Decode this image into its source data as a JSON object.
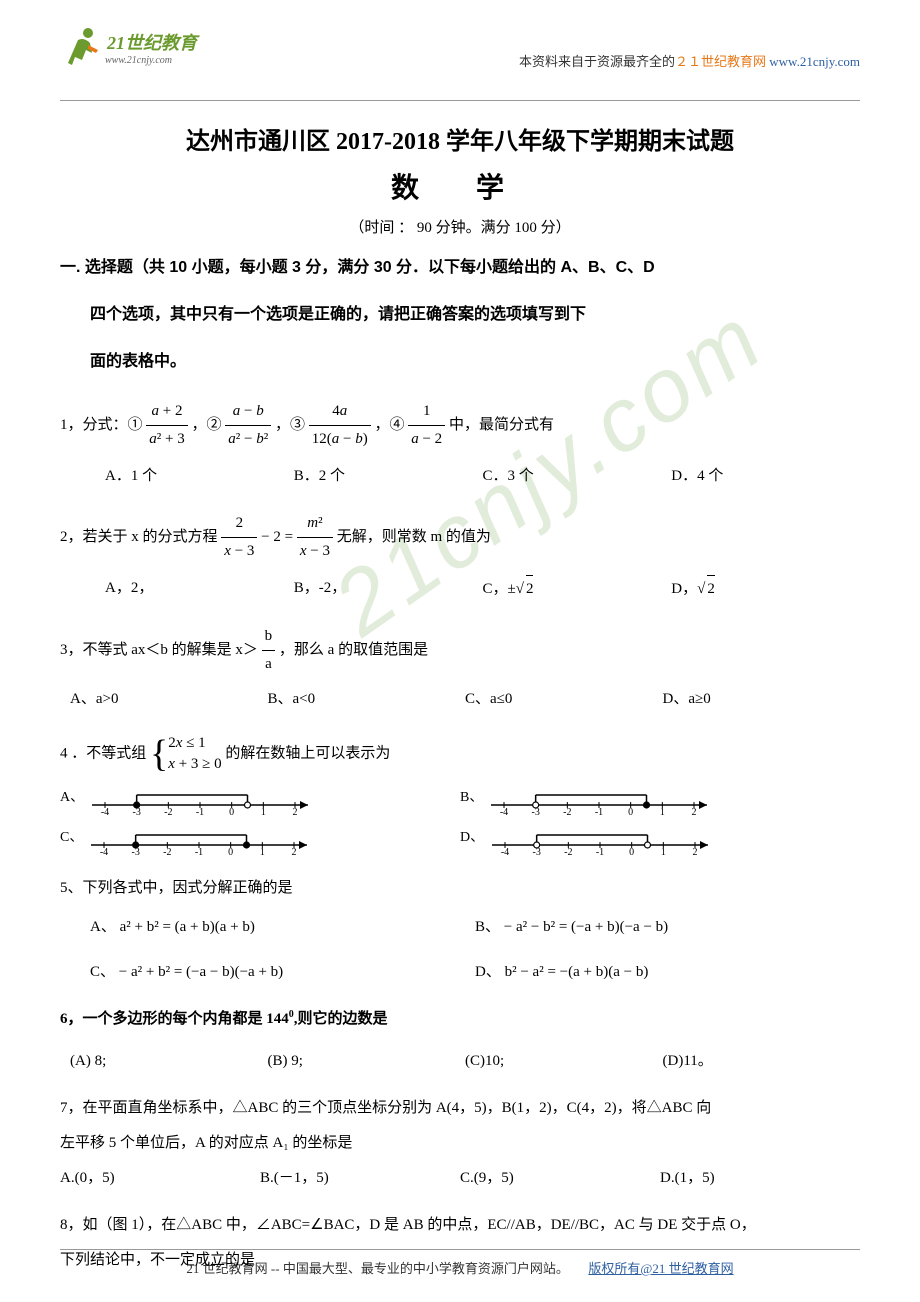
{
  "header": {
    "logo_text1": "21",
    "logo_text2": "世纪教育",
    "logo_url": "www.21cnjy.com",
    "right_prefix": "本资料来自于资源最齐全的",
    "right_orange": "２１世纪教育网",
    "right_link": "www.21cnjy.com"
  },
  "title": "达州市通川区 2017-2018 学年八年级下学期期末试题",
  "subject": "数 学",
  "time_info": "（时间 ： 90  分钟。满分 100 分）",
  "section1_line1": "一.  选择题（共 10 小题，每小题 3 分，满分 30 分．以下每小题给出的 A、B、C、D",
  "section1_line2": "四个选项，其中只有一个选项是正确的，请把正确答案的选项填写到下",
  "section1_line3": "面的表格中。",
  "q1": {
    "prefix": "1，分式：①",
    "mid1": "，②",
    "mid2": "，③",
    "mid3": "，④",
    "suffix": "中，最简分式有",
    "optA": "A．1 个",
    "optB": "B．2 个",
    "optC": "C．3 个",
    "optD": "D．4 个"
  },
  "q2": {
    "prefix": "2，若关于 x 的分式方程",
    "mid": " 无解，则常数 m 的值为",
    "optA": "A，2，",
    "optB": "B，-2，",
    "optC_prefix": "C，±",
    "optD_prefix": "D，",
    "sqrt_val": "2"
  },
  "q3": {
    "prefix": "3，不等式 ax＜b 的解集是 x＞",
    "suffix": "，那么 a 的取值范围是",
    "optA": "A、a>0",
    "optB": "B、a<0",
    "optC": "C、a≤0",
    "optD": "D、a≥0"
  },
  "q4": {
    "prefix": "4 ．不等式组",
    "line1": "2x ≤ 1",
    "line2": "x + 3 ≥ 0",
    "suffix": " 的解在数轴上可以表示为"
  },
  "number_lines": {
    "labels": [
      "A、",
      "B、",
      "C、",
      "D、"
    ],
    "ticks": [
      -4,
      -3,
      -2,
      -1,
      0,
      1,
      2
    ],
    "configs": [
      {
        "start": -3,
        "end": 0.5,
        "leftOpen": false,
        "rightOpen": true,
        "y": 0
      },
      {
        "start": -3,
        "end": 0.5,
        "leftOpen": true,
        "rightOpen": false,
        "y": 0
      },
      {
        "start": -3,
        "end": 0.5,
        "leftOpen": false,
        "rightOpen": false,
        "y": 0
      },
      {
        "start": -3,
        "end": 0.5,
        "leftOpen": true,
        "rightOpen": true,
        "y": 0
      }
    ]
  },
  "q5": {
    "text": "5、下列各式中，因式分解正确的是",
    "optA": "A、 a² + b² = (a + b)(a + b)",
    "optB": "B、 − a² − b² = (−a + b)(−a − b)",
    "optC": "C、 − a² + b² = (−a − b)(−a + b)",
    "optD": "D、 b² − a² = −(a + b)(a − b)"
  },
  "q6": {
    "prefix": "6，一个多边形的每个内角都是 144",
    "suffix": ",则它的边数是",
    "optA": "(A) 8;",
    "optB": "(B)   9;",
    "optC": "(C)10;",
    "optD": "(D)11。"
  },
  "q7": {
    "line1": "7，在平面直角坐标系中，△ABC 的三个顶点坐标分别为 A(4，5)，B(1，2)，C(4，2)，将△ABC 向",
    "line2": "左平移 5 个单位后，A 的对应点 A₁ 的坐标是",
    "optA": "A.(0，5)",
    "optB": "B.(－1，5)",
    "optC": "C.(9，5)",
    "optD": "D.(1，5)"
  },
  "q8": {
    "line1": "8，如（图 1），在△ABC 中，∠ABC=∠BAC，D 是 AB 的中点，EC//AB，DE//BC，AC 与 DE 交于点 O，",
    "line2": "下列结论中，不一定成立的是"
  },
  "footer": {
    "text": "21 世纪教育网 -- 中国最大型、最专业的中小学教育资源门户网站。",
    "link": "版权所有@21 世纪教育网"
  },
  "colors": {
    "logo_green": "#6b9b2f",
    "orange": "#e67817",
    "link_blue": "#2e5fa3",
    "watermark": "rgba(150,185,125,0.28)"
  }
}
